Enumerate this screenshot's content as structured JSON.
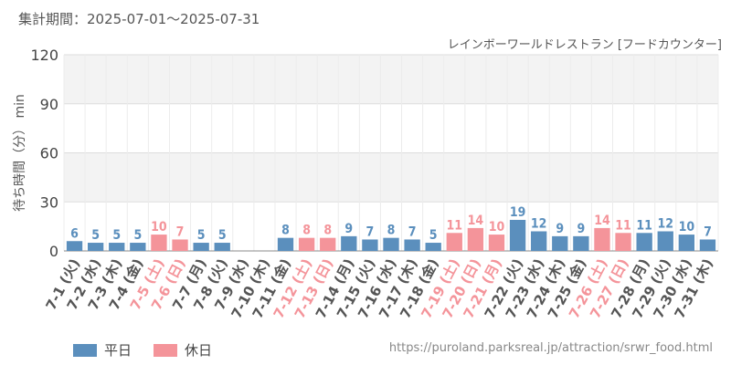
{
  "period_label": "集計期間：2025-07-01～2025-07-31",
  "subtitle": "レインボーワールドレストラン [フードカウンター]",
  "source_url": "https://puroland.parksreal.jp/attraction/srwr_food.html",
  "colors": {
    "weekday": "#5b8fbd",
    "holiday": "#f4949a"
  },
  "chart_data": {
    "type": "bar",
    "ylabel": "待ち時間（分） min",
    "ylim": [
      0,
      120
    ],
    "yticks": [
      0,
      30,
      60,
      90,
      120
    ],
    "grid": true,
    "legend_position": "bottom-left",
    "legend": [
      {
        "key": "weekday",
        "label": "平日"
      },
      {
        "key": "holiday",
        "label": "休日"
      }
    ],
    "categories": [
      "7-1 (火)",
      "7-2 (水)",
      "7-3 (木)",
      "7-4 (金)",
      "7-5 (土)",
      "7-6 (日)",
      "7-7 (月)",
      "7-8 (火)",
      "7-9 (水)",
      "7-10 (木)",
      "7-11 (金)",
      "7-12 (土)",
      "7-13 (日)",
      "7-14 (月)",
      "7-15 (火)",
      "7-16 (水)",
      "7-17 (木)",
      "7-18 (金)",
      "7-19 (土)",
      "7-20 (日)",
      "7-21 (月)",
      "7-22 (火)",
      "7-23 (水)",
      "7-24 (木)",
      "7-25 (金)",
      "7-26 (土)",
      "7-27 (日)",
      "7-28 (月)",
      "7-29 (火)",
      "7-30 (水)",
      "7-31 (木)"
    ],
    "values": [
      6,
      5,
      5,
      5,
      10,
      7,
      5,
      5,
      null,
      null,
      8,
      8,
      8,
      9,
      7,
      8,
      7,
      5,
      11,
      14,
      10,
      19,
      12,
      9,
      9,
      14,
      11,
      11,
      12,
      10,
      7
    ],
    "day_type": [
      "weekday",
      "weekday",
      "weekday",
      "weekday",
      "holiday",
      "holiday",
      "weekday",
      "weekday",
      "weekday",
      "weekday",
      "weekday",
      "holiday",
      "holiday",
      "weekday",
      "weekday",
      "weekday",
      "weekday",
      "weekday",
      "holiday",
      "holiday",
      "holiday",
      "weekday",
      "weekday",
      "weekday",
      "weekday",
      "holiday",
      "holiday",
      "weekday",
      "weekday",
      "weekday",
      "weekday"
    ]
  }
}
